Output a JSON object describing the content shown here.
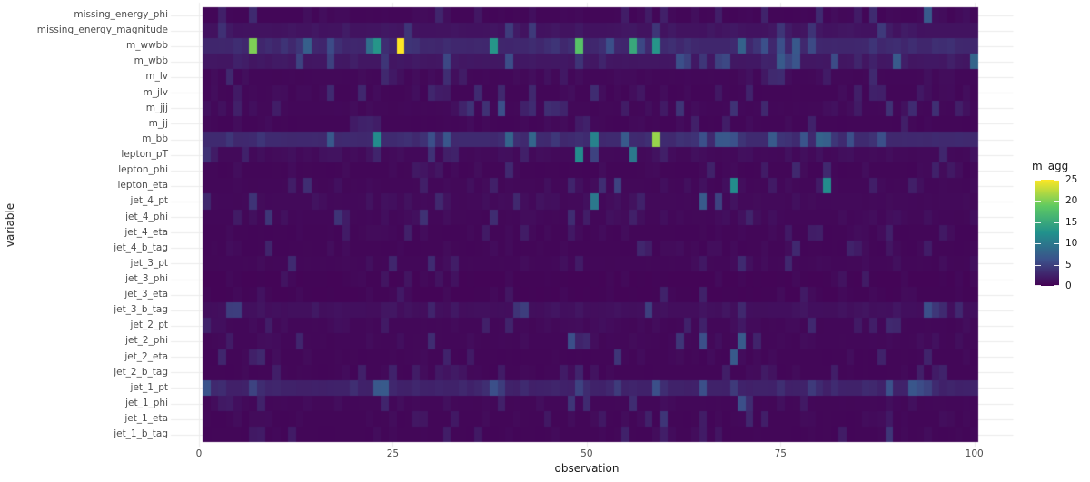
{
  "page": {
    "background": "#ffffff"
  },
  "chart_data": {
    "type": "heatmap",
    "title": "",
    "xlabel": "observation",
    "ylabel": "variable",
    "x_ticks": [
      0,
      25,
      50,
      75,
      100
    ],
    "n_observations": 100,
    "legend": {
      "title": "m_agg",
      "min": 0,
      "max": 25,
      "ticks": [
        0,
        5,
        10,
        15,
        20,
        25
      ]
    },
    "colormap": {
      "name": "viridis",
      "stops": [
        "#440154",
        "#3b528b",
        "#21918c",
        "#5ec962",
        "#fde725"
      ]
    },
    "styles": {
      "grid_color": "#ebebeb",
      "axis_text_color": "#4d4d4d",
      "axis_title_color": "#1a1a1a",
      "legend_text_color": "#1a1a1a",
      "background": "#ffffff"
    },
    "texture_seed": 7,
    "rows": [
      {
        "name": "missing_energy_phi",
        "base": 0.4,
        "noise": 0.8,
        "cells": [
          [
            94,
            7
          ]
        ]
      },
      {
        "name": "missing_energy_magnitude",
        "base": 1.3,
        "noise": 0.9,
        "cells": []
      },
      {
        "name": "m_wwbb",
        "base": 2.8,
        "noise": 1.4,
        "cells": [
          [
            7,
            20
          ],
          [
            22,
            9
          ],
          [
            23,
            13
          ],
          [
            26,
            25
          ],
          [
            38,
            13
          ],
          [
            49,
            18
          ],
          [
            53,
            6
          ],
          [
            56,
            15
          ],
          [
            59,
            13
          ],
          [
            75,
            6
          ]
        ]
      },
      {
        "name": "m_wbb",
        "base": 1.6,
        "noise": 1.3,
        "cells": [
          [
            13,
            5
          ],
          [
            24,
            4
          ],
          [
            62,
            6
          ],
          [
            75,
            7
          ],
          [
            90,
            7
          ],
          [
            100,
            8
          ]
        ]
      },
      {
        "name": "m_lv",
        "base": 0.5,
        "noise": 0.8,
        "cells": [
          [
            4,
            3
          ],
          [
            24,
            3
          ]
        ]
      },
      {
        "name": "m_jlv",
        "base": 0.4,
        "noise": 0.8,
        "cells": [
          [
            39,
            3
          ],
          [
            43,
            3
          ]
        ]
      },
      {
        "name": "m_jjj",
        "base": 0.5,
        "noise": 0.9,
        "cells": [
          [
            39,
            6
          ]
        ]
      },
      {
        "name": "m_jj",
        "base": 0.4,
        "noise": 0.6,
        "cells": []
      },
      {
        "name": "m_bb",
        "base": 3.0,
        "noise": 1.4,
        "cells": [
          [
            23,
            12
          ],
          [
            30,
            6
          ],
          [
            40,
            8
          ],
          [
            51,
            11
          ],
          [
            55,
            7
          ],
          [
            59,
            21
          ],
          [
            74,
            7
          ],
          [
            80,
            8
          ],
          [
            84,
            6
          ],
          [
            88,
            6
          ]
        ]
      },
      {
        "name": "lepton_pT",
        "base": 0.6,
        "noise": 0.9,
        "cells": [
          [
            49,
            12
          ],
          [
            51,
            5
          ],
          [
            56,
            10
          ]
        ]
      },
      {
        "name": "lepton_phi",
        "base": 0.4,
        "noise": 0.7,
        "cells": [
          [
            77,
            3
          ],
          [
            81,
            3
          ]
        ]
      },
      {
        "name": "lepton_eta",
        "base": 0.5,
        "noise": 0.8,
        "cells": [
          [
            54,
            5
          ],
          [
            69,
            12
          ],
          [
            81,
            12
          ]
        ]
      },
      {
        "name": "jet_4_pt",
        "base": 0.6,
        "noise": 0.9,
        "cells": [
          [
            51,
            10
          ],
          [
            65,
            7
          ],
          [
            67,
            5
          ]
        ]
      },
      {
        "name": "jet_4_phi",
        "base": 0.5,
        "noise": 0.9,
        "cells": [
          [
            9,
            4
          ]
        ]
      },
      {
        "name": "jet_4_eta",
        "base": 0.4,
        "noise": 0.6,
        "cells": []
      },
      {
        "name": "jet_4_b_tag",
        "base": 0.4,
        "noise": 0.7,
        "cells": []
      },
      {
        "name": "jet_3_pt",
        "base": 0.5,
        "noise": 0.8,
        "cells": []
      },
      {
        "name": "jet_3_phi",
        "base": 0.3,
        "noise": 0.5,
        "cells": []
      },
      {
        "name": "jet_3_eta",
        "base": 0.3,
        "noise": 0.6,
        "cells": []
      },
      {
        "name": "jet_3_b_tag",
        "base": 1.0,
        "noise": 1.0,
        "cells": [
          [
            94,
            6
          ]
        ]
      },
      {
        "name": "jet_2_pt",
        "base": 0.5,
        "noise": 0.7,
        "cells": []
      },
      {
        "name": "jet_2_phi",
        "base": 0.5,
        "noise": 0.8,
        "cells": [
          [
            48,
            6
          ],
          [
            62,
            4
          ],
          [
            65,
            6
          ],
          [
            70,
            7
          ]
        ]
      },
      {
        "name": "jet_2_eta",
        "base": 0.4,
        "noise": 0.7,
        "cells": [
          [
            54,
            4
          ],
          [
            69,
            7
          ]
        ]
      },
      {
        "name": "jet_2_b_tag",
        "base": 0.4,
        "noise": 0.6,
        "cells": []
      },
      {
        "name": "jet_1_pt",
        "base": 2.4,
        "noise": 1.2,
        "cells": [
          [
            24,
            7
          ],
          [
            38,
            6
          ],
          [
            49,
            5
          ],
          [
            59,
            6
          ],
          [
            65,
            6
          ]
        ]
      },
      {
        "name": "jet_1_phi",
        "base": 0.5,
        "noise": 0.8,
        "cells": [
          [
            48,
            4
          ],
          [
            70,
            6
          ]
        ]
      },
      {
        "name": "jet_1_eta",
        "base": 0.4,
        "noise": 0.7,
        "cells": [
          [
            60,
            4
          ]
        ]
      },
      {
        "name": "jet_1_b_tag",
        "base": 0.4,
        "noise": 0.6,
        "cells": [
          [
            89,
            4
          ]
        ]
      }
    ]
  }
}
